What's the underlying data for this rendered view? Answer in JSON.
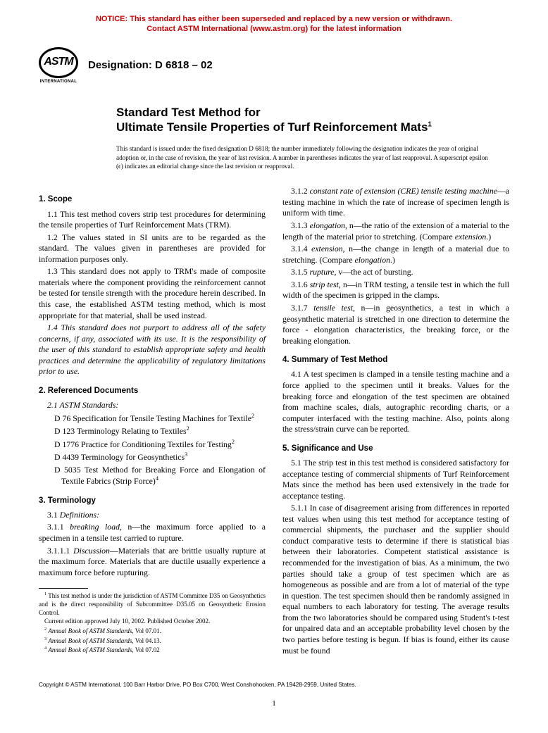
{
  "notice": {
    "line1": "NOTICE: This standard has either been superseded and replaced by a new version or withdrawn.",
    "line2": "Contact ASTM International (www.astm.org) for the latest information",
    "color": "#cc0000"
  },
  "logo": {
    "text": "ASTM",
    "subtext": "INTERNATIONAL"
  },
  "designation": "Designation: D 6818 – 02",
  "title": {
    "line1": "Standard Test Method for",
    "line2_prefix": "Ultimate Tensile Properties of Turf Reinforcement Mats",
    "line2_sup": "1"
  },
  "issuance": "This standard is issued under the fixed designation D 6818; the number immediately following the designation indicates the year of original adoption or, in the case of revision, the year of last revision. A number in parentheses indicates the year of last reapproval. A superscript epsilon (ϵ) indicates an editorial change since the last revision or reapproval.",
  "left": {
    "scope_head": "1. Scope",
    "scope": [
      "1.1 This test method covers strip test procedures for determining the tensile properties of Turf Reinforcement Mats (TRM).",
      "1.2 The values stated in SI units are to be regarded as the standard. The values given in parentheses are provided for information purposes only.",
      "1.3 This standard does not apply to TRM's made of composite materials where the component providing the reinforcement cannot be tested for tensile strength with the procedure herein described. In this case, the established ASTM testing method, which is most appropriate for that material, shall be used instead."
    ],
    "scope_italic": "1.4 This standard does not purport to address all of the safety concerns, if any, associated with its use. It is the responsibility of the user of this standard to establish appropriate safety and health practices and determine the applicability of regulatory limitations prior to use.",
    "refdocs_head": "2. Referenced Documents",
    "refdocs_sub": "2.1 ASTM Standards:",
    "refdocs": [
      {
        "t": "D 76  Specification for Tensile Testing Machines for Textile",
        "s": "2"
      },
      {
        "t": "D 123  Terminology Relating to Textiles",
        "s": "2"
      },
      {
        "t": "D 1776  Practice for Conditioning Textiles for Testing",
        "s": "2"
      },
      {
        "t": "D 4439  Terminology for Geosynthetics",
        "s": "3"
      },
      {
        "t": "D 5035  Test Method for Breaking Force and Elongation of Textile Fabrics (Strip Force)",
        "s": "4"
      }
    ],
    "term_head": "3. Terminology",
    "term_sub": "3.1 Definitions:",
    "term_311_a": "3.1.1 ",
    "term_311_b": "breaking load",
    "term_311_c": ", n—the maximum force applied to a specimen in a tensile test carried to rupture.",
    "term_3111_a": "3.1.1.1 ",
    "term_3111_b": "Discussion",
    "term_3111_c": "—Materials that are brittle usually rupture at the maximum force. Materials that are ductile usually experience a maximum force before rupturing."
  },
  "right": {
    "defs": [
      {
        "a": "3.1.2 ",
        "b": "constant rate of extension (CRE) tensile testing machine",
        "c": "—a testing machine in which the rate of increase of specimen length is uniform with time."
      },
      {
        "a": "3.1.3 ",
        "b": "elongation",
        "c": ", n—the ratio of the extension of a material to the length of the material prior to stretching. (Compare ",
        "d": "extension",
        "e": ".)"
      },
      {
        "a": "3.1.4 ",
        "b": "extension",
        "c": ", n—the change in length of a material due to stretching. (Compare ",
        "d": "elongation",
        "e": ".)"
      },
      {
        "a": "3.1.5 ",
        "b": "rupture",
        "c": ", v—the act of bursting."
      },
      {
        "a": "3.1.6 ",
        "b": "strip test",
        "c": ", n—in TRM testing, a tensile test in which the full width of the specimen is gripped in the clamps."
      },
      {
        "a": "3.1.7 ",
        "b": "tensile test",
        "c": ", n—in geosynthetics, a test in which a geosynthetic material is stretched in one direction to determine the force - elongation characteristics, the breaking force, or the breaking elongation."
      }
    ],
    "summary_head": "4. Summary of Test Method",
    "summary": "4.1 A test specimen is clamped in a tensile testing machine and a force applied to the specimen until it breaks. Values for the breaking force and elongation of the test specimen are obtained from machine scales, dials, autographic recording charts, or a computer interfaced with the testing machine. Also, points along the stress/strain curve can be reported.",
    "sig_head": "5. Significance and Use",
    "sig_51": "5.1 The strip test in this test method is considered satisfactory for acceptance testing of commercial shipments of Turf Reinforcement Mats since the method has been used extensively in the trade for acceptance testing.",
    "sig_511": "5.1.1 In case of disagreement arising from differences in reported test values when using this test method for acceptance testing of commercial shipments, the purchaser and the supplier should conduct comparative tests to determine if there is statistical bias between their laboratories. Competent statistical assistance is recommended for the investigation of bias. As a minimum, the two parties should take a group of test specimen which are as homogeneous as possible and are from a lot of material of the type in question. The test specimen should then be randomly assigned in equal numbers to each laboratory for testing. The average results from the two laboratories should be compared using Student's t-test for unpaired data and an acceptable probability level chosen by the two parties before testing is begun. If bias is found, either its cause must be found"
  },
  "footnotes": {
    "f1": "This test method is under the jurisdiction of ASTM Committee D35 on Geosynthetics and is the direct responsibility of Subcommittee D35.05 on Geosynthetic Erosion Control.",
    "f1b": "Current edition approved July 10, 2002. Published October 2002.",
    "f2": "Annual Book of ASTM Standards",
    "f2v": ", Vol 07.01.",
    "f3v": ", Vol 04.13.",
    "f4v": ", Vol 07.02"
  },
  "copyright": "Copyright © ASTM International, 100 Barr Harbor Drive, PO Box C700, West Conshohocken, PA 19428-2959, United States.",
  "pagenum": "1"
}
